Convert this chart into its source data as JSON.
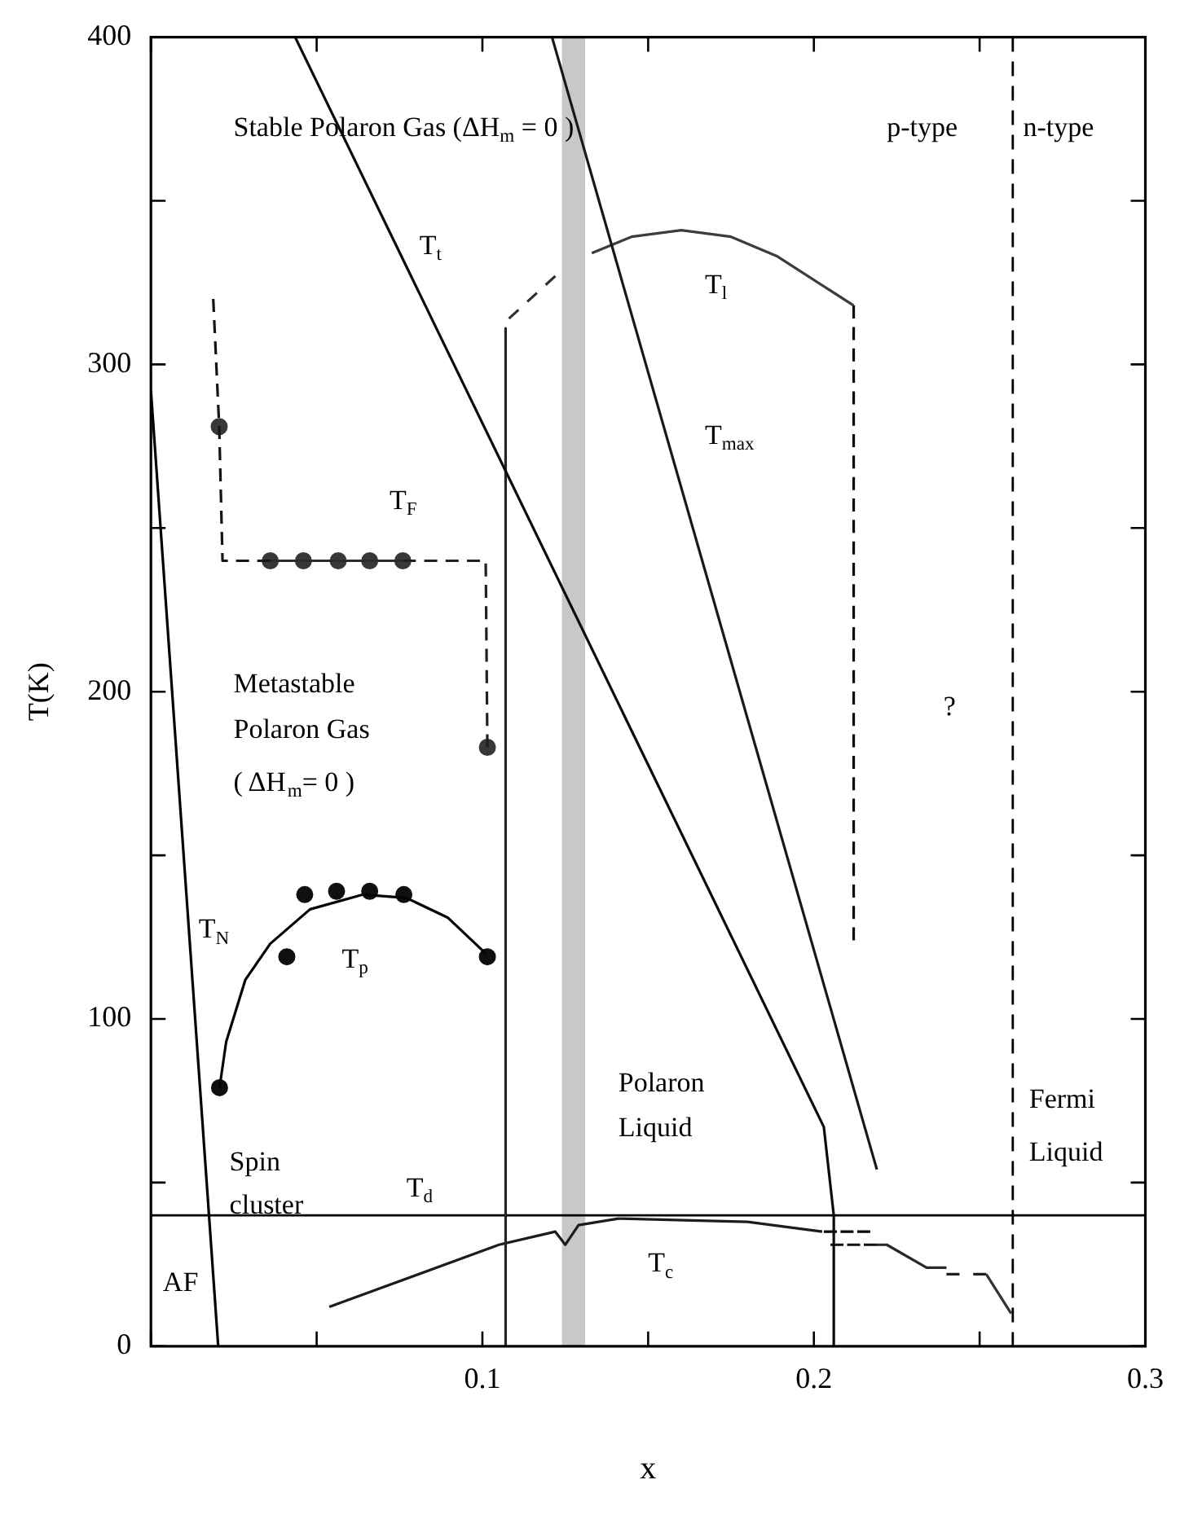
{
  "chart_data": {
    "type": "line",
    "xlabel": "x",
    "ylabel": "T(K)",
    "xlim": [
      0,
      0.3
    ],
    "ylim": [
      0,
      400
    ],
    "xticks": [
      {
        "value": 0,
        "label": null
      },
      {
        "value": 0.05,
        "label": null
      },
      0.1,
      {
        "value": 0.15,
        "label": null
      },
      0.2,
      {
        "value": 0.25,
        "label": null
      },
      0.3
    ],
    "yticks": [
      0,
      {
        "value": 50,
        "label": null
      },
      100,
      {
        "value": 150,
        "label": null
      },
      200,
      {
        "value": 250,
        "label": null
      },
      300,
      {
        "value": 350,
        "label": null
      },
      400
    ],
    "grid": false,
    "legend": false,
    "series": [
      {
        "color": "#000000",
        "x": [
          0,
          0.0203
        ],
        "values": [
          292,
          0
        ]
      },
      {
        "color": "#0c0c0c",
        "x": [
          0.0435,
          0.203,
          0.206,
          0.206
        ],
        "values": [
          400,
          67,
          40,
          0
        ]
      },
      {
        "color": "#181818",
        "x": [
          0.121,
          0.219
        ],
        "values": [
          400,
          54
        ]
      },
      {
        "color": "#242424",
        "x": [
          0.107,
          0.107
        ],
        "values": [
          311,
          0
        ]
      },
      {
        "color": "#303030",
        "line_style": "dashed",
        "x": [
          0.108,
          0.122
        ],
        "values": [
          314,
          327
        ]
      },
      {
        "color": "#3c3c3c",
        "x": [
          0.133,
          0.145,
          0.16,
          0.175,
          0.189,
          0.212
        ],
        "values": [
          334,
          339,
          341,
          339,
          333,
          318
        ]
      },
      {
        "color": "#080808",
        "line_style": "dashed",
        "x": [
          0.212,
          0.212
        ],
        "values": [
          318,
          124
        ]
      },
      {
        "color": "#141414",
        "line_style": "dashed",
        "x": [
          0.0188,
          0.0206,
          0.0216,
          0.036
        ],
        "values": [
          320,
          281,
          240,
          240
        ]
      },
      {
        "color": "#202020",
        "line_style": "dashed",
        "x": [
          0.076,
          0.101,
          0.1015
        ],
        "values": [
          240,
          240,
          183
        ]
      },
      {
        "color": "#2c2c2c",
        "x": [
          0.036,
          0.076
        ],
        "values": [
          240,
          240
        ]
      },
      {
        "type": "scatter",
        "color": "#383838",
        "marker": "circle",
        "x": [
          0.0206,
          0.036,
          0.046,
          0.0565,
          0.066,
          0.076,
          0.1015
        ],
        "values": [
          281,
          240,
          240,
          240,
          240,
          240,
          183
        ]
      },
      {
        "color": "#040404",
        "x": [
          0.0207,
          0.0227,
          0.0285,
          0.036,
          0.048,
          0.064,
          0.077,
          0.0895,
          0.101
        ],
        "values": [
          79,
          93,
          112,
          123,
          133.5,
          138,
          137,
          131,
          120
        ]
      },
      {
        "type": "scatter",
        "color": "#101010",
        "marker": "circle",
        "x": [
          0.0207,
          0.041,
          0.0464,
          0.056,
          0.066,
          0.0763,
          0.1015
        ],
        "values": [
          79,
          119,
          138,
          139,
          139,
          138,
          119
        ]
      },
      {
        "color": "#1c1c1c",
        "x": [
          0.0538,
          0.105,
          0.122,
          0.125,
          0.129,
          0.141,
          0.18,
          0.2025
        ],
        "values": [
          12,
          31,
          35,
          31,
          37,
          39,
          38,
          35
        ]
      },
      {
        "color": "#282828",
        "x": [
          0.219,
          0.222,
          0.234,
          0.24
        ],
        "values": [
          31,
          31,
          24,
          24
        ]
      },
      {
        "color": "#343434",
        "x": [
          0.252,
          0.2595
        ],
        "values": [
          22,
          10
        ]
      },
      {
        "color": "#060606",
        "line_style": "dashed",
        "x": [
          0.203,
          0.217
        ],
        "values": [
          35,
          35
        ]
      },
      {
        "color": "#121212",
        "line_style": "dashed",
        "x": [
          0.205,
          0.219
        ],
        "values": [
          31,
          31
        ]
      },
      {
        "color": "#1e1e1e",
        "line_style": "dashed",
        "x": [
          0.24,
          0.252
        ],
        "values": [
          22,
          22
        ]
      }
    ],
    "ref_lines": [
      {
        "axis": "y",
        "value": 40,
        "color": "#000000",
        "line_style": "solid"
      },
      {
        "axis": "x",
        "value": 0.26,
        "color": "#000000",
        "line_style": "dashed"
      }
    ],
    "bands": [
      {
        "axis": "x",
        "from": 0.124,
        "to": 0.131,
        "color": "#c8c8c8"
      }
    ],
    "annotations": [
      "Stable Polaron Gas (ΔH$_{m}$ = 0 )",
      "T$_{t}$",
      "T$_{F}$",
      "Metastable",
      "Polaron Gas",
      "( ΔH$_{m}$= 0 )",
      "T$_{N}$",
      "T$_{p}$",
      "Spin",
      "cluster",
      "T$_{d}$",
      "AF",
      "T$_{c}$",
      "Polaron",
      "Liquid",
      "T$_{l}$",
      "T$_{max}$",
      "p-type",
      "n-type",
      "?",
      "Fermi",
      "Liquid"
    ]
  }
}
